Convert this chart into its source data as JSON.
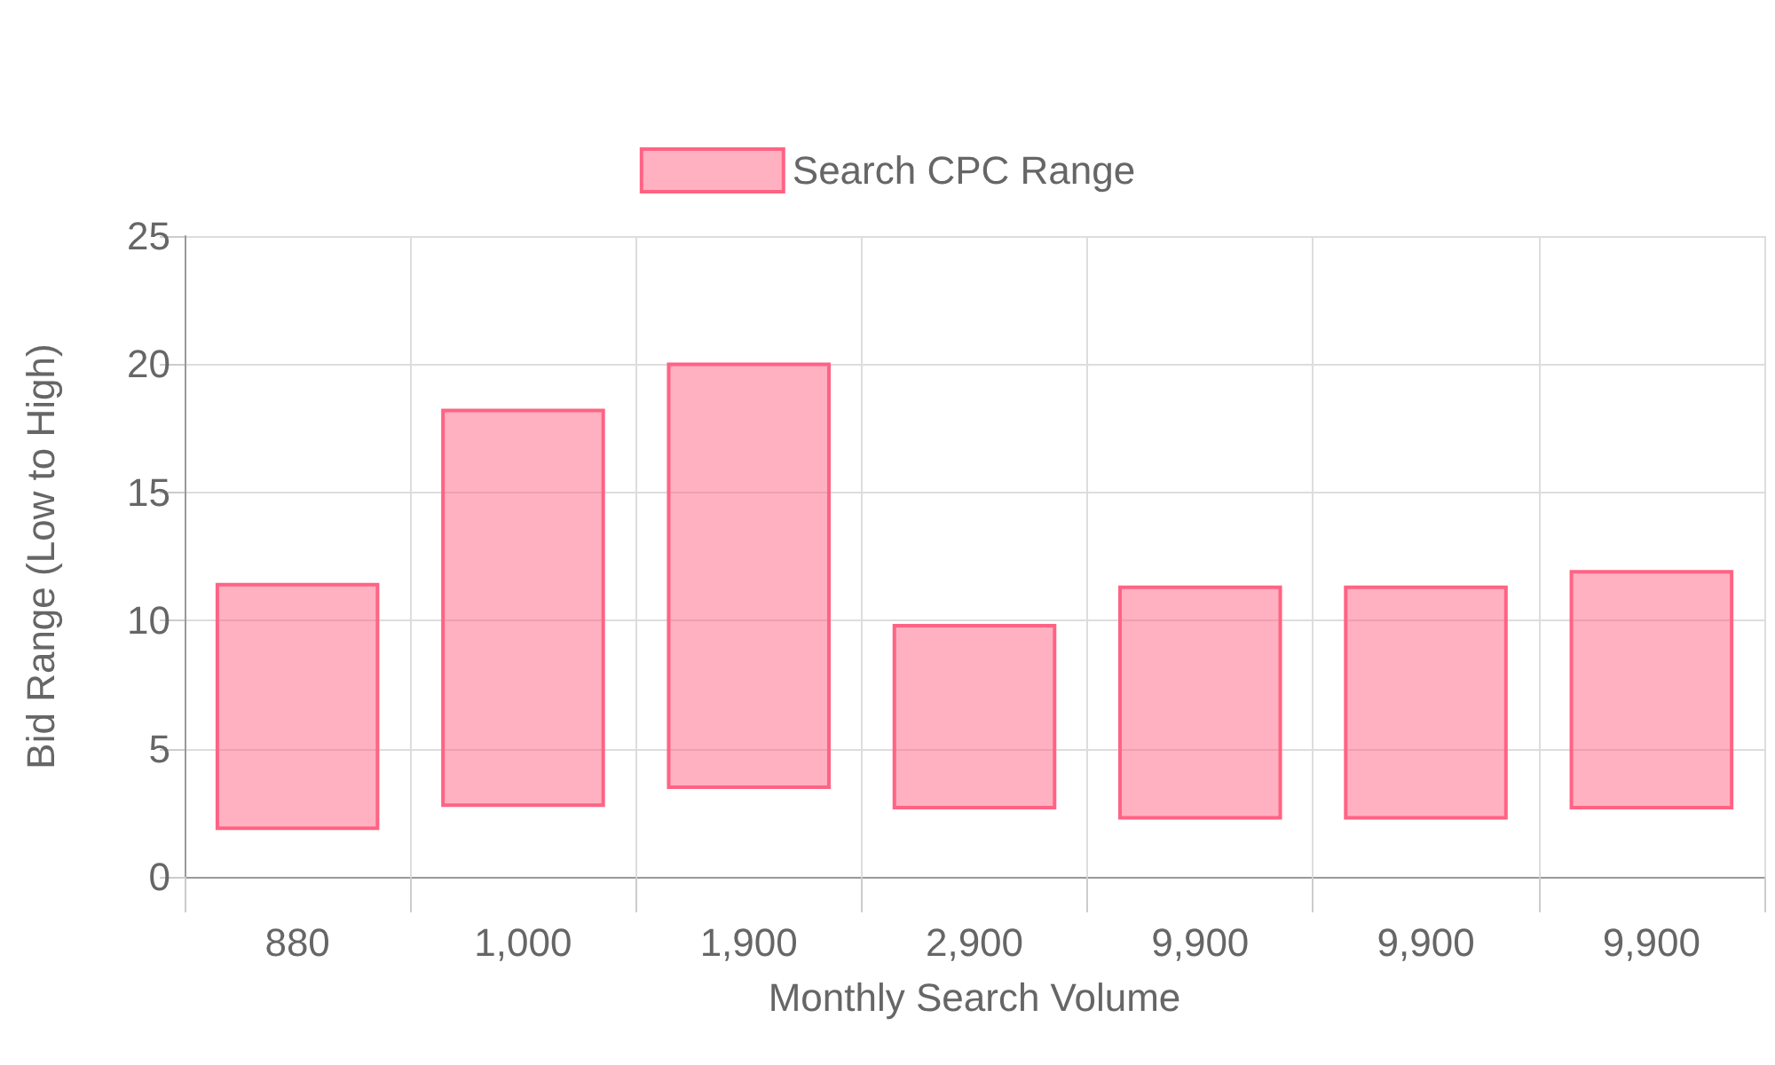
{
  "chart_data": {
    "type": "bar",
    "xlabel": "Monthly Search Volume",
    "ylabel": "Bid Range (Low to High)",
    "categories": [
      "880",
      "1,000",
      "1,900",
      "2,900",
      "9,900",
      "9,900",
      "9,900"
    ],
    "series": [
      {
        "name": "Search CPC Range",
        "color": "#ff6384",
        "values": [
          9.5,
          15.4,
          16.5,
          7.1,
          9.0,
          9.0,
          9.2
        ],
        "base": [
          1.9,
          2.8,
          3.5,
          2.7,
          2.3,
          2.3,
          2.7
        ]
      }
    ],
    "ylim": [
      0,
      25
    ],
    "yticks": [
      0,
      5,
      10,
      15,
      20,
      25
    ],
    "grid": true,
    "legend": "top"
  }
}
